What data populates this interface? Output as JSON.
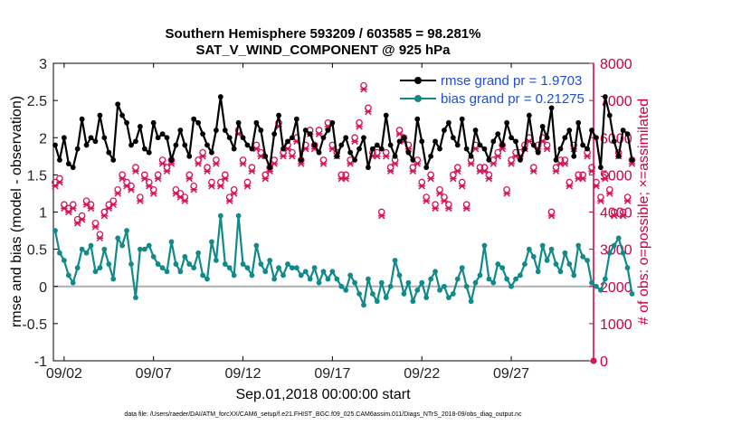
{
  "chart_data": {
    "type": "line",
    "title_line1": "Southern Hemisphere 593209 / 603585 = 98.281%",
    "title_line2": "SAT_V_WIND_COMPONENT @ 925 hPa",
    "xlabel": "Sep.01,2018 00:00:00 start",
    "ylabel_left": "rmse and bias (model - observation)",
    "ylabel_right": "# of obs: o=possible; ×=assimilated",
    "footer": "data file: /Users/raeder/DAI/ATM_forcXX/CAM6_setup/f.e21.FHIST_BGC.f09_025.CAM6assim.011/Diags_NTrS_2018-09/obs_diag_output.nc",
    "ylim_left": [
      -1,
      3
    ],
    "ylim_right": [
      0,
      8000
    ],
    "xlim_days": [
      0.4,
      30.6
    ],
    "left_ticks": [
      "-1",
      "-0.5",
      "0",
      "0.5",
      "1",
      "1.5",
      "2",
      "2.5",
      "3"
    ],
    "right_ticks": [
      "0",
      "1000",
      "2000",
      "3000",
      "4000",
      "5000",
      "6000",
      "7000",
      "8000"
    ],
    "x_ticks": [
      {
        "day": 1.0,
        "label": "09/02"
      },
      {
        "day": 6.0,
        "label": "09/07"
      },
      {
        "day": 11.0,
        "label": "09/12"
      },
      {
        "day": 16.0,
        "label": "09/17"
      },
      {
        "day": 21.0,
        "label": "09/22"
      },
      {
        "day": 26.0,
        "label": "09/27"
      }
    ],
    "x_start_day": 0.0,
    "x_step_days": 0.25,
    "legend": [
      {
        "name": "rmse grand pr = 1.9703",
        "color": "#000000"
      },
      {
        "name": "bias grand pr = 0.21275",
        "color": "#138a8a"
      }
    ],
    "colors": {
      "rmse": "#000000",
      "bias": "#138a8a",
      "obs": "#d6145a",
      "zero_line": "#b0b0b0"
    },
    "series": [
      {
        "name": "rmse",
        "values": [
          1.9,
          1.7,
          2.0,
          1.65,
          1.6,
          1.85,
          2.25,
          1.9,
          2.0,
          1.95,
          2.3,
          2.0,
          1.8,
          1.7,
          2.45,
          2.3,
          2.2,
          1.9,
          1.95,
          2.15,
          1.85,
          1.8,
          2.2,
          2.0,
          2.05,
          2.0,
          1.7,
          1.9,
          2.1,
          1.9,
          1.75,
          2.25,
          2.2,
          2.05,
          1.9,
          1.8,
          2.1,
          2.55,
          2.1,
          2.0,
          1.85,
          2.2,
          2.0,
          1.9,
          1.85,
          2.2,
          2.1,
          1.75,
          1.6,
          2.05,
          2.3,
          1.85,
          1.95,
          2.0,
          2.25,
          1.7,
          2.1,
          2.05,
          1.9,
          1.8,
          2.0,
          2.1,
          2.2,
          1.75,
          1.9,
          2.0,
          1.8,
          1.7,
          1.85,
          2.0,
          1.6,
          1.85,
          1.9,
          1.85,
          2.3,
          1.9,
          1.75,
          1.95,
          2.0,
          1.8,
          1.7,
          2.25,
          1.95,
          1.6,
          1.75,
          1.95,
          1.85,
          2.1,
          2.2,
          2.0,
          1.9,
          2.25,
          1.85,
          1.75,
          2.1,
          1.9,
          1.85,
          1.7,
          1.95,
          2.05,
          1.9,
          2.2,
          2.0,
          1.95,
          1.7,
          1.85,
          2.3,
          1.9,
          1.8,
          2.15,
          2.0,
          2.4,
          1.7,
          1.85,
          2.0,
          2.1,
          1.75,
          2.2,
          1.9,
          1.85,
          2.1,
          2.0,
          1.6,
          2.55,
          2.3,
          1.95,
          1.75,
          2.1,
          2.05,
          1.7
        ],
        "color": "#000000"
      },
      {
        "name": "bias",
        "values": [
          0.75,
          0.45,
          0.35,
          0.15,
          0.05,
          0.25,
          0.5,
          0.45,
          0.55,
          0.2,
          0.25,
          0.5,
          0.3,
          0.1,
          0.65,
          0.55,
          0.75,
          0.3,
          -0.15,
          0.5,
          0.5,
          0.55,
          0.4,
          0.3,
          0.25,
          0.2,
          0.6,
          0.3,
          0.2,
          0.4,
          0.3,
          0.25,
          0.45,
          0.15,
          0.1,
          0.6,
          0.35,
          0.95,
          0.3,
          0.25,
          0.15,
          0.95,
          0.3,
          0.25,
          0.15,
          0.55,
          0.3,
          0.2,
          0.35,
          0.1,
          0.25,
          0.15,
          0.3,
          0.25,
          0.25,
          0.15,
          0.2,
          0.1,
          0.25,
          0.05,
          0.2,
          0.1,
          0.2,
          0.1,
          0.0,
          -0.05,
          0.15,
          0.05,
          -0.1,
          -0.25,
          0.1,
          -0.1,
          -0.2,
          0.05,
          -0.15,
          0.0,
          0.35,
          0.15,
          -0.1,
          0.05,
          -0.2,
          -0.05,
          0.05,
          -0.15,
          0.1,
          0.2,
          -0.05,
          0.0,
          -0.15,
          -0.1,
          0.1,
          0.25,
          0.0,
          -0.2,
          0.05,
          0.15,
          0.55,
          0.1,
          0.05,
          0.3,
          0.25,
          0.1,
          0.0,
          0.1,
          0.15,
          0.3,
          0.5,
          0.4,
          0.2,
          0.55,
          0.35,
          0.5,
          0.3,
          0.2,
          0.45,
          0.3,
          0.15,
          0.55,
          0.4,
          0.35,
          0.05,
          0.0,
          -0.05,
          0.1,
          0.45,
          0.55,
          0.65,
          0.45,
          0.25,
          -0.1
        ],
        "color": "#138a8a"
      }
    ],
    "obs_count": {
      "possible": [
        4800,
        4900,
        4200,
        4100,
        4200,
        3800,
        3900,
        4300,
        4200,
        3700,
        3400,
        4000,
        4200,
        4300,
        4600,
        5000,
        4800,
        4700,
        5200,
        4400,
        5000,
        4800,
        4600,
        5000,
        5400,
        5200,
        5400,
        4600,
        4500,
        4400,
        5000,
        4700,
        5400,
        5600,
        5200,
        4800,
        5400,
        4800,
        5000,
        4400,
        4600,
        6200,
        5400,
        4800,
        5200,
        5800,
        5600,
        5000,
        5200,
        5400,
        6400,
        5600,
        5800,
        5600,
        6000,
        5400,
        5800,
        6200,
        5800,
        6200,
        5400,
        6400,
        5800,
        5600,
        5000,
        5000,
        5400,
        6000,
        6400,
        7400,
        6800,
        5600,
        5600,
        4000,
        5600,
        5200,
        5400,
        6200,
        6000,
        5800,
        5200,
        5400,
        4800,
        4400,
        5000,
        4200,
        4600,
        4400,
        4200,
        5000,
        5200,
        4800,
        4200,
        5400,
        5800,
        5200,
        5200,
        5000,
        5400,
        5600,
        5800,
        4600,
        5400,
        5600,
        5600,
        5800,
        6000,
        5200,
        5800,
        6000,
        5800,
        4000,
        5200,
        5400,
        5400,
        4800,
        5800,
        5000,
        5000,
        5600,
        5200,
        4800,
        4400,
        5000,
        4600,
        4000,
        5600,
        4000,
        4400,
        5400
      ],
      "assimilated": [
        4700,
        4800,
        4100,
        4000,
        4100,
        3700,
        3800,
        4200,
        4100,
        3600,
        3300,
        3900,
        4100,
        4200,
        4500,
        4900,
        4700,
        4600,
        5100,
        4300,
        4900,
        4700,
        4500,
        4900,
        5300,
        5100,
        5300,
        4500,
        4400,
        4300,
        4900,
        4600,
        5300,
        5500,
        5100,
        4700,
        5300,
        4700,
        4900,
        4300,
        4500,
        6100,
        5300,
        4700,
        5100,
        5700,
        5500,
        4900,
        5100,
        5300,
        6300,
        5500,
        5700,
        5500,
        5900,
        5300,
        5700,
        6100,
        5700,
        6100,
        5300,
        6300,
        5700,
        5500,
        4900,
        4900,
        5300,
        5900,
        6300,
        7300,
        6700,
        5500,
        5500,
        3900,
        5500,
        5100,
        5300,
        6100,
        5900,
        5700,
        5100,
        5300,
        4700,
        4300,
        4900,
        4100,
        4500,
        4300,
        4100,
        4900,
        5100,
        4700,
        4100,
        5300,
        5700,
        5100,
        5100,
        4900,
        5300,
        5500,
        5700,
        4500,
        5300,
        5500,
        5500,
        5700,
        5900,
        5100,
        5700,
        5900,
        5700,
        3900,
        5100,
        5300,
        5300,
        4700,
        5700,
        4900,
        4900,
        5500,
        5100,
        4700,
        4300,
        4900,
        4500,
        3900,
        5500,
        3900,
        4300,
        5300
      ]
    }
  }
}
